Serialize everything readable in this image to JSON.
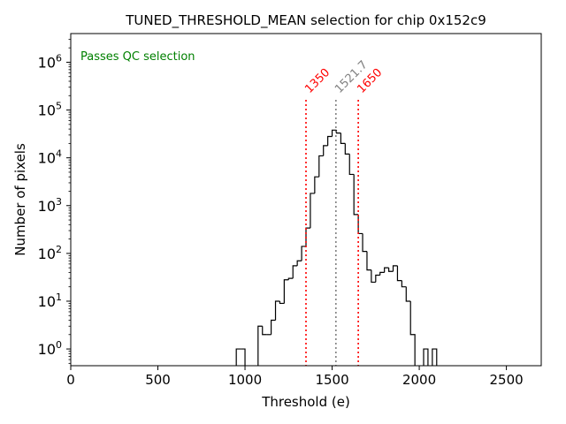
{
  "chart_data": {
    "type": "histogram",
    "title": "TUNED_THRESHOLD_MEAN selection for chip 0x152c9",
    "xlabel": "Threshold (e)",
    "ylabel": "Number of pixels",
    "xlim": [
      0,
      2700
    ],
    "ylim_log10": [
      -0.35,
      6.6
    ],
    "xscale": "linear",
    "yscale": "log",
    "x_ticks": [
      0,
      500,
      1000,
      1500,
      2000,
      2500
    ],
    "x_tick_labels": [
      "0",
      "500",
      "1000",
      "1500",
      "2000",
      "2500"
    ],
    "y_tick_exponents": [
      0,
      1,
      2,
      3,
      4,
      5,
      6
    ],
    "y_tick_base": "10",
    "bin_width": 25,
    "bins": [
      {
        "x0": 950,
        "count": 1
      },
      {
        "x0": 975,
        "count": 1
      },
      {
        "x0": 1075,
        "count": 3
      },
      {
        "x0": 1100,
        "count": 2
      },
      {
        "x0": 1125,
        "count": 2
      },
      {
        "x0": 1150,
        "count": 4
      },
      {
        "x0": 1175,
        "count": 10
      },
      {
        "x0": 1200,
        "count": 9
      },
      {
        "x0": 1225,
        "count": 28
      },
      {
        "x0": 1250,
        "count": 30
      },
      {
        "x0": 1275,
        "count": 55
      },
      {
        "x0": 1300,
        "count": 70
      },
      {
        "x0": 1325,
        "count": 140
      },
      {
        "x0": 1350,
        "count": 340
      },
      {
        "x0": 1375,
        "count": 1800
      },
      {
        "x0": 1400,
        "count": 4000
      },
      {
        "x0": 1425,
        "count": 11000
      },
      {
        "x0": 1450,
        "count": 18000
      },
      {
        "x0": 1475,
        "count": 28000
      },
      {
        "x0": 1500,
        "count": 38000
      },
      {
        "x0": 1525,
        "count": 33000
      },
      {
        "x0": 1550,
        "count": 20000
      },
      {
        "x0": 1575,
        "count": 12000
      },
      {
        "x0": 1600,
        "count": 4500
      },
      {
        "x0": 1625,
        "count": 650
      },
      {
        "x0": 1650,
        "count": 260
      },
      {
        "x0": 1675,
        "count": 110
      },
      {
        "x0": 1700,
        "count": 45
      },
      {
        "x0": 1725,
        "count": 25
      },
      {
        "x0": 1750,
        "count": 35
      },
      {
        "x0": 1775,
        "count": 40
      },
      {
        "x0": 1800,
        "count": 50
      },
      {
        "x0": 1825,
        "count": 42
      },
      {
        "x0": 1850,
        "count": 55
      },
      {
        "x0": 1875,
        "count": 27
      },
      {
        "x0": 1900,
        "count": 20
      },
      {
        "x0": 1925,
        "count": 10
      },
      {
        "x0": 1950,
        "count": 2
      },
      {
        "x0": 2025,
        "count": 1
      },
      {
        "x0": 2075,
        "count": 1
      }
    ],
    "vertical_lines": [
      {
        "x": 1350,
        "label": "1350",
        "color": "#ff0000"
      },
      {
        "x": 1521.7,
        "label": "1521.7",
        "color": "#808080"
      },
      {
        "x": 1650,
        "label": "1650",
        "color": "#ff0000"
      }
    ],
    "annotation": {
      "text": "Passes QC selection",
      "color": "#008000"
    },
    "line_color": "#000000"
  }
}
